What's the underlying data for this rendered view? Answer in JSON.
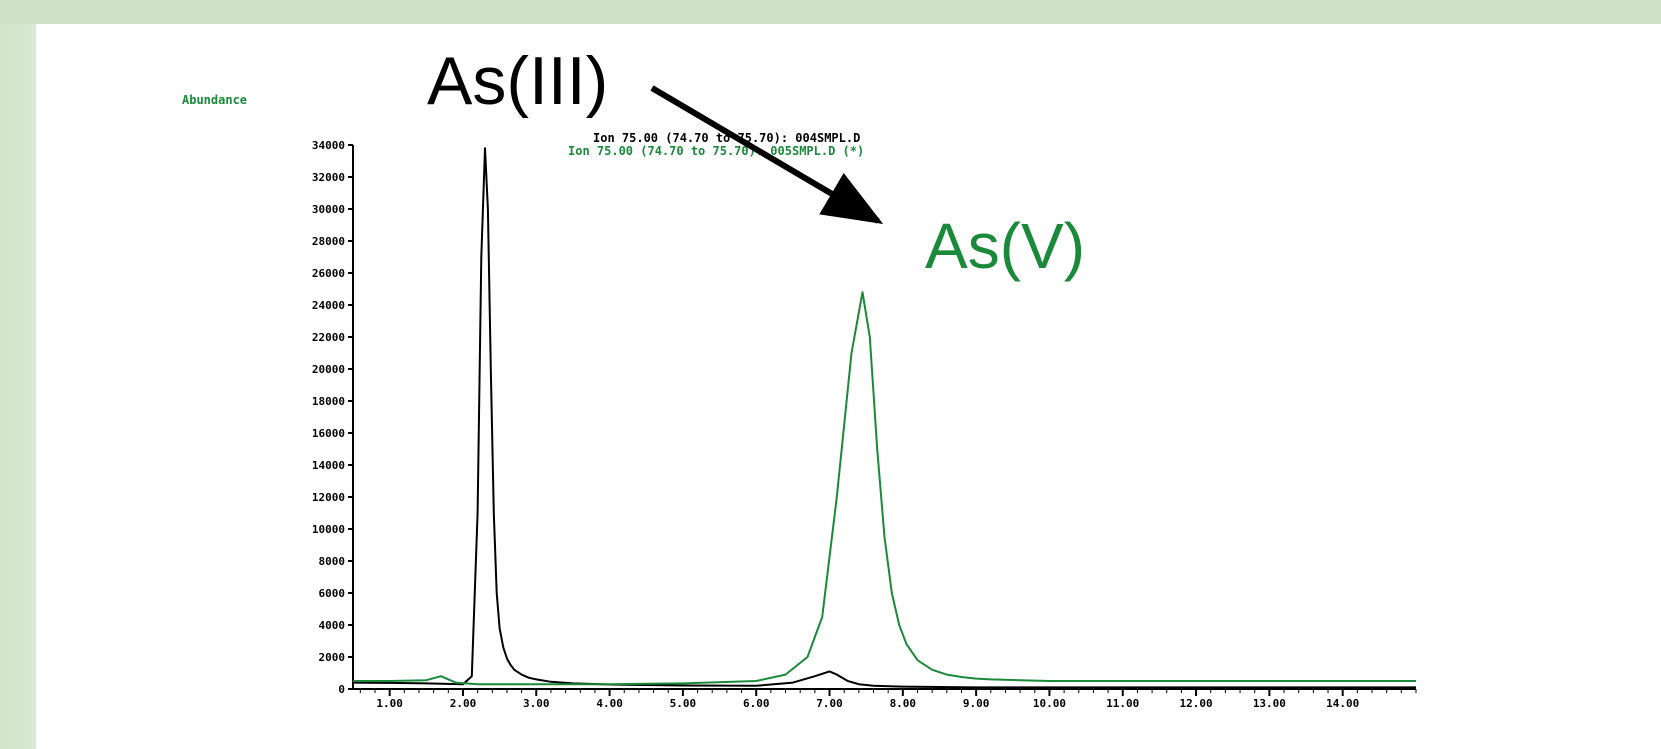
{
  "colors": {
    "as3": "#000000",
    "as5": "#1a8a3a",
    "background_band": "#cfe2c6"
  },
  "chart_data": {
    "type": "line",
    "ylabel": "Abundance",
    "ylim": [
      0,
      34000
    ],
    "xlim": [
      0.5,
      15
    ],
    "y_ticks": [
      0,
      2000,
      4000,
      6000,
      8000,
      10000,
      12000,
      14000,
      16000,
      18000,
      20000,
      22000,
      24000,
      26000,
      28000,
      30000,
      32000,
      34000
    ],
    "x_ticks": [
      1,
      2,
      3,
      4,
      5,
      6,
      7,
      8,
      9,
      10,
      11,
      12,
      13,
      14
    ],
    "x_tick_labels": [
      "1.00",
      "2.00",
      "3.00",
      "4.00",
      "5.00",
      "6.00",
      "7.00",
      "8.00",
      "9.00",
      "10.00",
      "11.00",
      "12.00",
      "13.00",
      "14.00"
    ],
    "legend": [
      "Ion 75.00 (74.70 to 75.70): 004SMPL.D",
      "Ion 75.00 (74.70 to 75.70): 005SMPL.D (*)"
    ],
    "annotations": [
      {
        "text": "As(III)",
        "x": 2.3,
        "y": 33500
      },
      {
        "text": "As(V)",
        "x": 7.0,
        "y": 28500
      }
    ],
    "series": [
      {
        "name": "Ion 75.00 (74.70 to 75.70): 004SMPL.D",
        "x": [
          0.5,
          1.0,
          1.5,
          2.0,
          2.12,
          2.2,
          2.25,
          2.3,
          2.34,
          2.38,
          2.42,
          2.46,
          2.5,
          2.55,
          2.6,
          2.65,
          2.7,
          2.8,
          2.9,
          3.0,
          3.2,
          3.5,
          4.0,
          5.0,
          6.0,
          6.5,
          6.8,
          7.0,
          7.1,
          7.25,
          7.4,
          7.6,
          8.0,
          9.0,
          10.0,
          12.0,
          15.0
        ],
        "y": [
          400,
          380,
          350,
          300,
          800,
          11000,
          27000,
          33800,
          30000,
          20000,
          11000,
          6000,
          3800,
          2600,
          1900,
          1500,
          1200,
          900,
          700,
          600,
          450,
          350,
          280,
          220,
          200,
          400,
          800,
          1100,
          900,
          500,
          300,
          200,
          150,
          100,
          100,
          100,
          100
        ]
      },
      {
        "name": "Ion 75.00 (74.70 to 75.70): 005SMPL.D (*)",
        "x": [
          0.5,
          1.0,
          1.5,
          1.7,
          1.9,
          2.2,
          3.0,
          4.0,
          5.0,
          6.0,
          6.4,
          6.7,
          6.9,
          7.1,
          7.3,
          7.45,
          7.55,
          7.65,
          7.75,
          7.85,
          7.95,
          8.05,
          8.2,
          8.4,
          8.6,
          8.8,
          9.0,
          9.2,
          9.6,
          10.0,
          11.0,
          12.0,
          13.0,
          14.0,
          15.0
        ],
        "y": [
          500,
          500,
          550,
          800,
          400,
          300,
          300,
          300,
          350,
          500,
          900,
          2000,
          4500,
          12000,
          21000,
          24800,
          22000,
          15000,
          9500,
          6000,
          4000,
          2800,
          1800,
          1200,
          900,
          750,
          650,
          600,
          550,
          500,
          500,
          500,
          500,
          500,
          500
        ]
      }
    ]
  }
}
